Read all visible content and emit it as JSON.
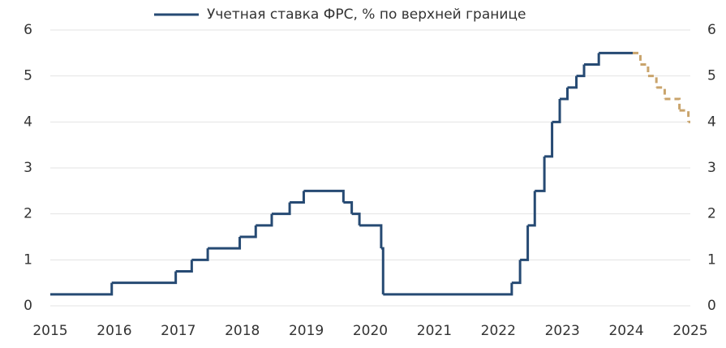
{
  "chart_data": {
    "type": "line",
    "legend_position": "top",
    "xlim": [
      2015,
      2025
    ],
    "xticks": [
      2015,
      2016,
      2017,
      2018,
      2019,
      2020,
      2021,
      2022,
      2023,
      2024,
      2025
    ],
    "ylim": [
      0,
      6
    ],
    "yticks": [
      0,
      1,
      2,
      3,
      4,
      5,
      6
    ],
    "y2lim": [
      0,
      6
    ],
    "y2ticks": [
      0,
      1,
      2,
      3,
      4,
      5,
      6
    ],
    "grid": true,
    "series": [
      {
        "name": "Учетная ставка ФРС, % по верхней границе",
        "color": "#264a73",
        "style": "solid",
        "x": [
          2015,
          2015.96,
          2016.96,
          2017.21,
          2017.46,
          2017.96,
          2018.21,
          2018.46,
          2018.74,
          2018.96,
          2019.58,
          2019.71,
          2019.83,
          2020.17,
          2020.2,
          2022.21,
          2022.34,
          2022.46,
          2022.57,
          2022.72,
          2022.84,
          2022.96,
          2023.08,
          2023.22,
          2023.34,
          2023.57,
          2024.1
        ],
        "values": [
          0.25,
          0.5,
          0.75,
          1,
          1.25,
          1.5,
          1.75,
          2,
          2.25,
          2.5,
          2.25,
          2,
          1.75,
          1.25,
          0.25,
          0.5,
          1,
          1.75,
          2.5,
          3.25,
          4,
          4.5,
          4.75,
          5,
          5.25,
          5.5,
          5.5
        ]
      },
      {
        "color": "#c9a46c",
        "style": "dashed",
        "x": [
          2024.1,
          2024.22,
          2024.34,
          2024.47,
          2024.6,
          2024.83,
          2024.97,
          2025
        ],
        "values": [
          5.5,
          5.25,
          5,
          4.75,
          4.5,
          4.25,
          4,
          4
        ]
      }
    ]
  }
}
